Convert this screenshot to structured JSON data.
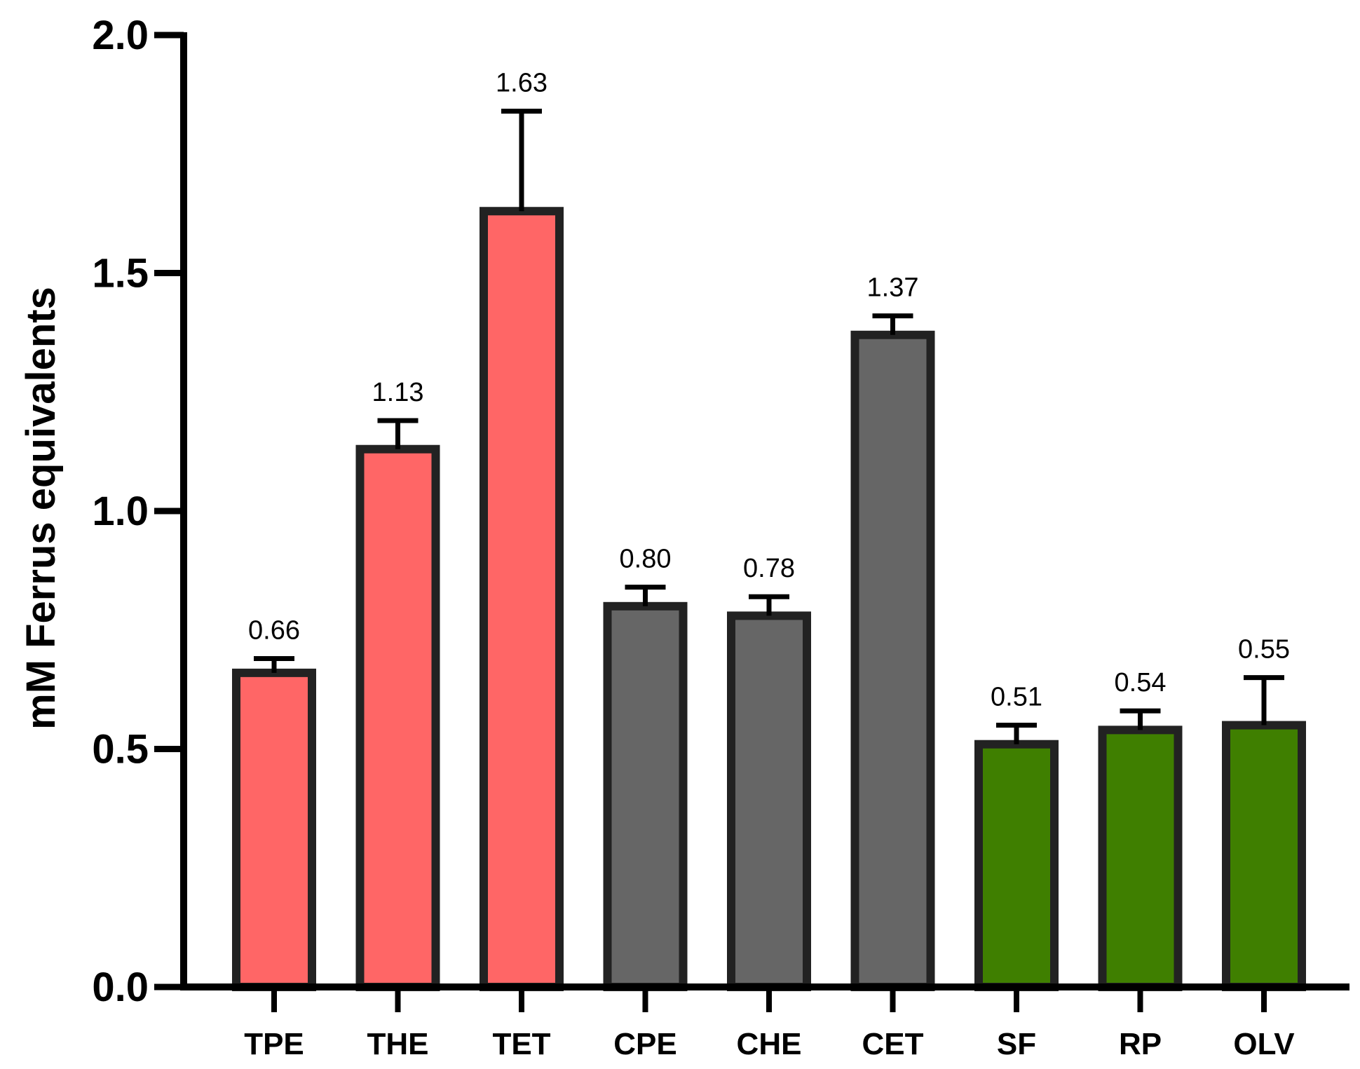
{
  "chart_data": {
    "type": "bar",
    "title": "",
    "xlabel": "",
    "ylabel": "mM Ferrus equivalents",
    "ylim": [
      0,
      2.0
    ],
    "yticks": [
      "0.0",
      "0.5",
      "1.0",
      "1.5",
      "2.0"
    ],
    "grid": false,
    "categories": [
      "TPE",
      "THE",
      "TET",
      "CPE",
      "CHE",
      "CET",
      "SF",
      "RP",
      "OLV"
    ],
    "values": [
      0.66,
      1.13,
      1.63,
      0.8,
      0.78,
      1.37,
      0.51,
      0.54,
      0.55
    ],
    "value_labels": [
      "0.66",
      "1.13",
      "1.63",
      "0.80",
      "0.78",
      "1.37",
      "0.51",
      "0.54",
      "0.55"
    ],
    "error_upper": [
      0.69,
      1.19,
      1.84,
      0.84,
      0.82,
      1.41,
      0.55,
      0.58,
      0.65
    ],
    "colors": [
      "#FF6666",
      "#FF6666",
      "#FF6666",
      "#666666",
      "#666666",
      "#666666",
      "#3F7F00",
      "#3F7F00",
      "#3F7F00"
    ],
    "edge_color": "#222222"
  }
}
